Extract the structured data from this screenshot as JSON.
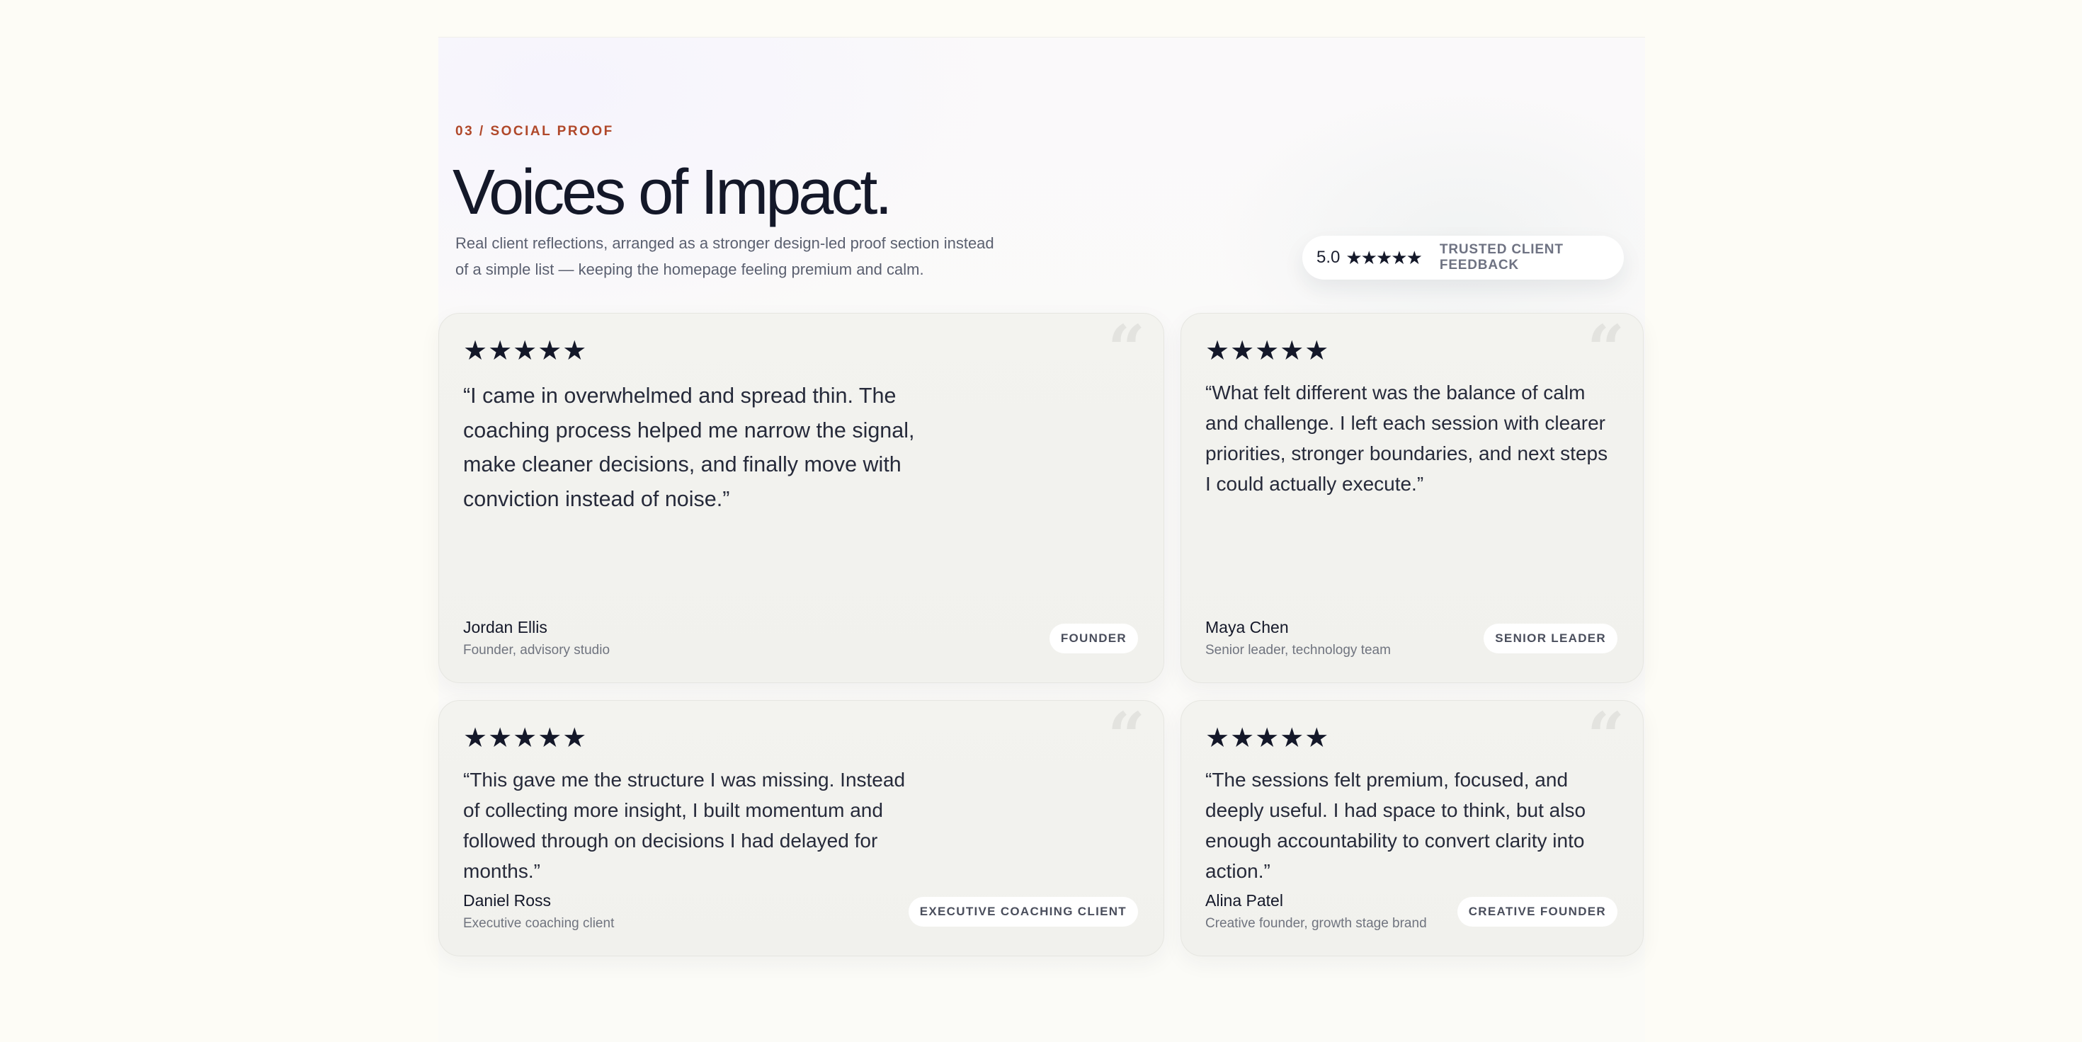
{
  "header": {
    "eyebrow": "03 / SOCIAL PROOF",
    "title": "Voices of Impact.",
    "subtitle": "Real client reflections, arranged as a stronger design-led proof section instead of a simple list — keeping the homepage feeling premium and calm."
  },
  "badge": {
    "score": "5.0",
    "stars": "★★★★★",
    "label": "TRUSTED CLIENT FEEDBACK"
  },
  "testimonials": [
    {
      "stars": "★★★★★",
      "rating": 5,
      "quote": "“I came in overwhelmed and spread thin. The coaching process helped me narrow the signal, make cleaner decisions, and finally move with conviction instead of noise.”",
      "name": "Jordan Ellis",
      "role": "Founder, advisory studio",
      "tag": "FOUNDER"
    },
    {
      "stars": "★★★★★",
      "rating": 5,
      "quote": "“What felt different was the balance of calm and challenge. I left each session with clearer priorities, stronger boundaries, and next steps I could actually execute.”",
      "name": "Maya Chen",
      "role": "Senior leader, technology team",
      "tag": "SENIOR LEADER"
    },
    {
      "stars": "★★★★★",
      "rating": 5,
      "quote": "“This gave me the structure I was missing. Instead of collecting more insight, I built momentum and followed through on decisions I had delayed for months.”",
      "name": "Daniel Ross",
      "role": "Executive coaching client",
      "tag": "EXECUTIVE COACHING CLIENT"
    },
    {
      "stars": "★★★★★",
      "rating": 5,
      "quote": "“The sessions felt premium, focused, and deeply useful. I had space to think, but also enough accountability to convert clarity into action.”",
      "name": "Alina Patel",
      "role": "Creative founder, growth stage brand",
      "tag": "CREATIVE FOUNDER"
    }
  ],
  "quote_mark": "“",
  "colors": {
    "accent": "#b0482a",
    "ink": "#141829",
    "card": "#f3f3ef"
  }
}
